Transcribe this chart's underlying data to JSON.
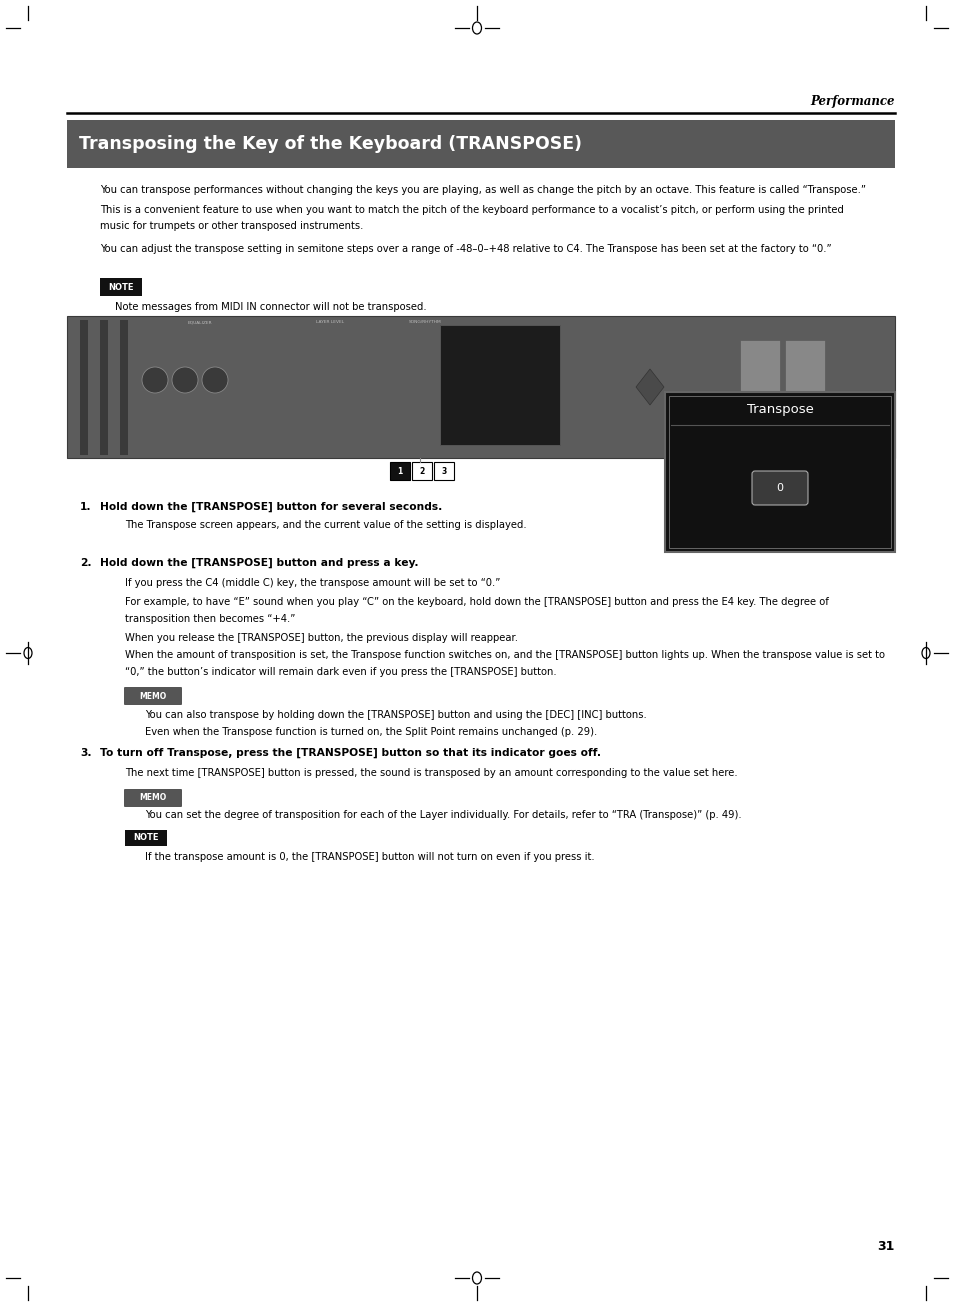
{
  "page_width": 9.54,
  "page_height": 13.06,
  "dpi": 100,
  "bg_color": "#ffffff",
  "header_text": "Performance",
  "title_text": "Transposing the Key of the Keyboard (TRANSPOSE)",
  "title_bg": "#585858",
  "title_fg": "#ffffff",
  "para1": "You can transpose performances without changing the keys you are playing, as well as change the pitch by an octave. This feature is called “Transpose.”",
  "para2a": "This is a convenient feature to use when you want to match the pitch of the keyboard performance to a vocalist’s pitch, or perform using the printed",
  "para2b": "music for trumpets or other transposed instruments.",
  "para3": "You can adjust the transpose setting in semitone steps over a range of -48–0–+48 relative to C4. The Transpose has been set at the factory to “0.”",
  "note1_label": "NOTE",
  "note1_text": "Note messages from MIDI IN connector will not be transposed.",
  "step1_bold": "Hold down the [TRANSPOSE] button for several seconds.",
  "step1_desc": "The Transpose screen appears, and the current value of the setting is displayed.",
  "step2_bold": "Hold down the [TRANSPOSE] button and press a key.",
  "step2_desc1": "If you press the C4 (middle C) key, the transpose amount will be set to “0.”",
  "step2_desc2a": "For example, to have “E” sound when you play “C” on the keyboard, hold down the [TRANSPOSE] button and press the E4 key. The degree of",
  "step2_desc2b": "transposition then becomes “+4.”",
  "step2_desc3": "When you release the [TRANSPOSE] button, the previous display will reappear.",
  "step2_desc4a": "When the amount of transposition is set, the Transpose function switches on, and the [TRANSPOSE] button lights up. When the transpose value is set to",
  "step2_desc4b": "“0,” the button’s indicator will remain dark even if you press the [TRANSPOSE] button.",
  "memo1_label": "MEMO",
  "memo1_text1": "You can also transpose by holding down the [TRANSPOSE] button and using the [DEC] [INC] buttons.",
  "memo1_text2": "Even when the Transpose function is turned on, the Split Point remains unchanged (p. 29).",
  "step3_bold": "To turn off Transpose, press the [TRANSPOSE] button so that its indicator goes off.",
  "step3_desc": "The next time [TRANSPOSE] button is pressed, the sound is transposed by an amount corresponding to the value set here.",
  "memo2_label": "MEMO",
  "memo2_text": "You can set the degree of transposition for each of the Layer individually. For details, refer to “TRA (Transpose)” (p. 49).",
  "note2_label": "NOTE",
  "note2_text": "If the transpose amount is 0, the [TRANSPOSE] button will not turn on even if you press it.",
  "page_number": "31",
  "transpose_screen_title": "Transpose",
  "transpose_screen_value": "0"
}
